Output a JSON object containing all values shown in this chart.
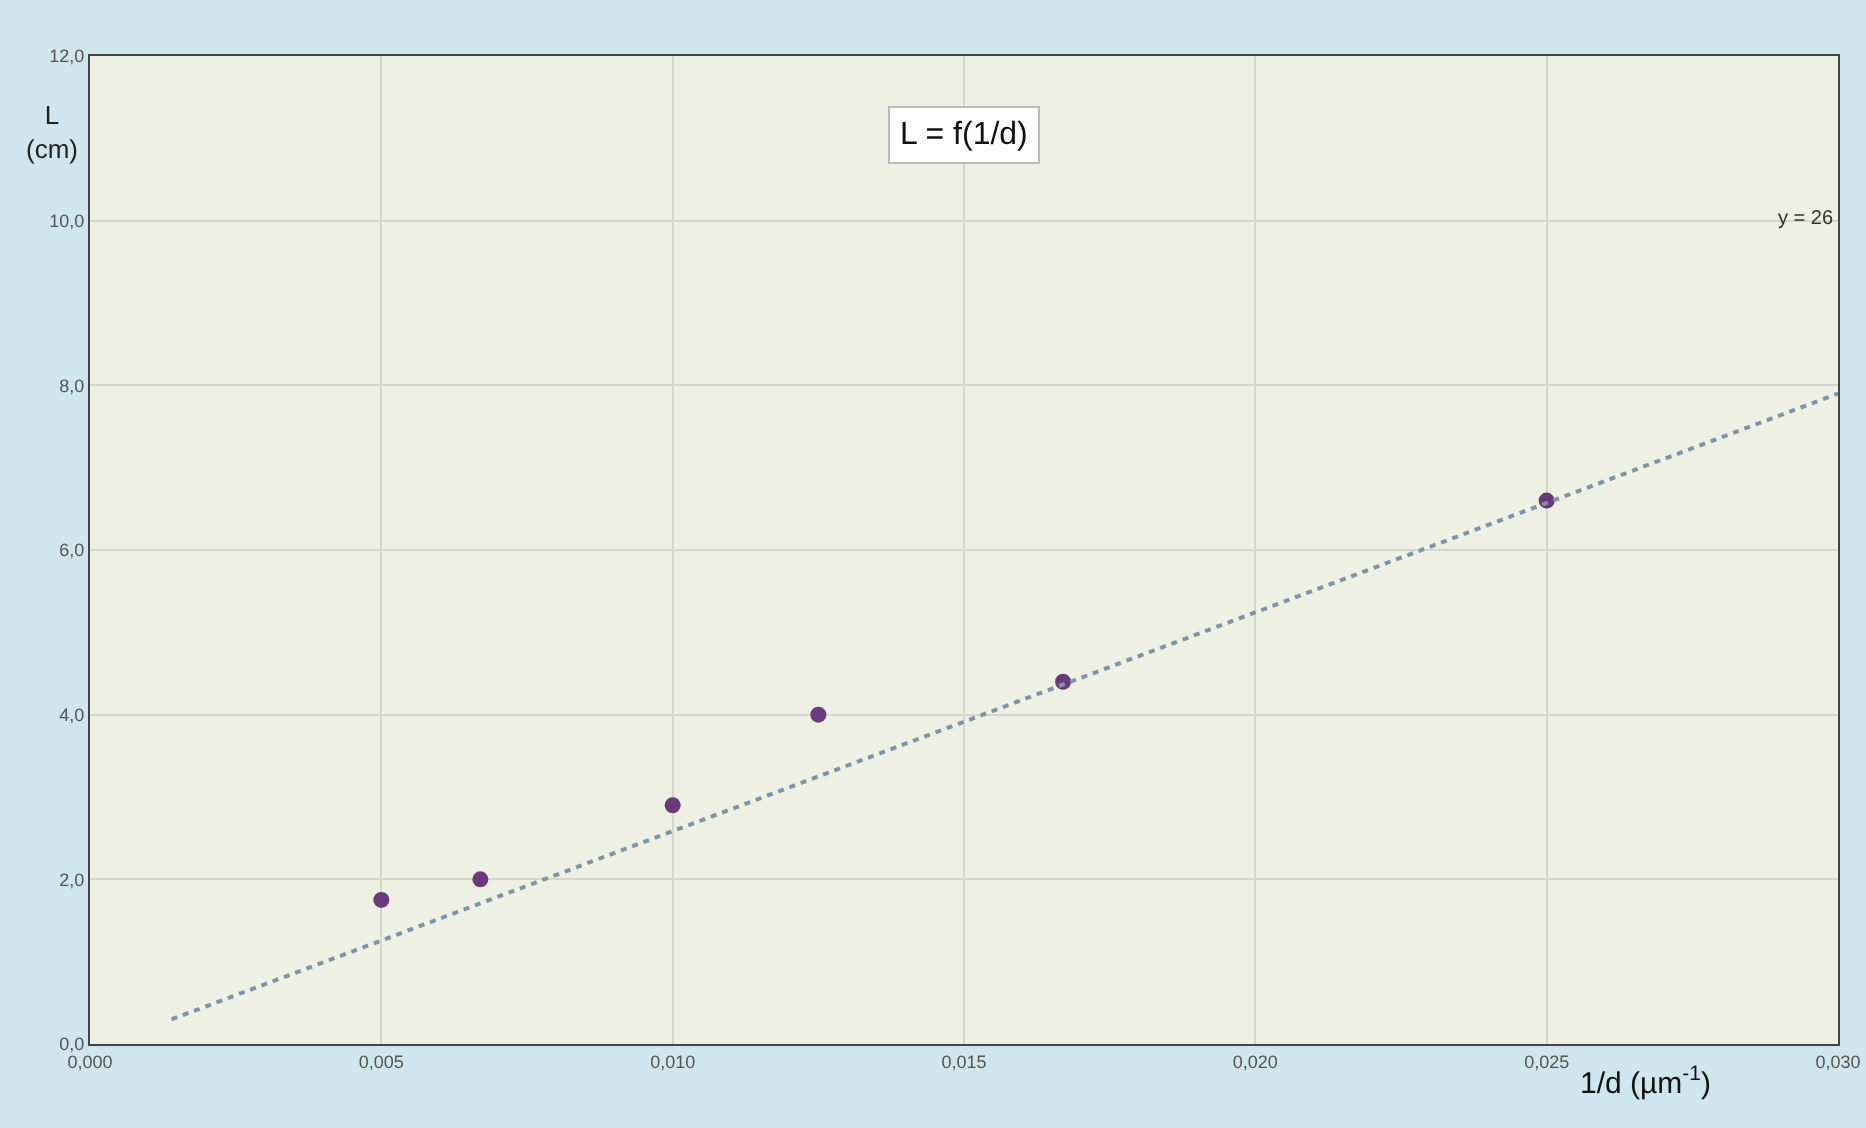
{
  "chart_data": {
    "type": "scatter",
    "title": "L = f(1/d)",
    "xlabel": "1/d (µm$^{-1}$)",
    "ylabel": "L\n(cm)",
    "x": [
      0.005,
      0.0067,
      0.01,
      0.0125,
      0.0167,
      0.025
    ],
    "series": [
      {
        "color": "#6b3a7a",
        "marker": "circle",
        "values": [
          1.75,
          2.0,
          2.9,
          4.0,
          4.4,
          6.6
        ]
      },
      {
        "type": "line",
        "color": "#7f93a8",
        "line_style": "dotted",
        "marker": "none",
        "x": [
          0.0014,
          0.03
        ],
        "values": [
          0.3,
          7.9
        ]
      }
    ],
    "annotations": [
      "y = 26"
    ],
    "xlim": [
      0,
      0.03
    ],
    "ylim": [
      0,
      12
    ],
    "xticks": [
      {
        "value": 0,
        "label": "0,000"
      },
      {
        "value": 0.005,
        "label": "0,005"
      },
      {
        "value": 0.01,
        "label": "0,010"
      },
      {
        "value": 0.015,
        "label": "0,015"
      },
      {
        "value": 0.02,
        "label": "0,020"
      },
      {
        "value": 0.025,
        "label": "0,025"
      },
      {
        "value": 0.03,
        "label": "0,030"
      }
    ],
    "yticks": [
      {
        "value": 0,
        "label": "0,0"
      },
      {
        "value": 2,
        "label": "2,0"
      },
      {
        "value": 4,
        "label": "4,0"
      },
      {
        "value": 6,
        "label": "6,0"
      },
      {
        "value": 8,
        "label": "8,0"
      },
      {
        "value": 10,
        "label": "10,0"
      },
      {
        "value": 12,
        "label": "12,0"
      }
    ],
    "grid": true
  }
}
